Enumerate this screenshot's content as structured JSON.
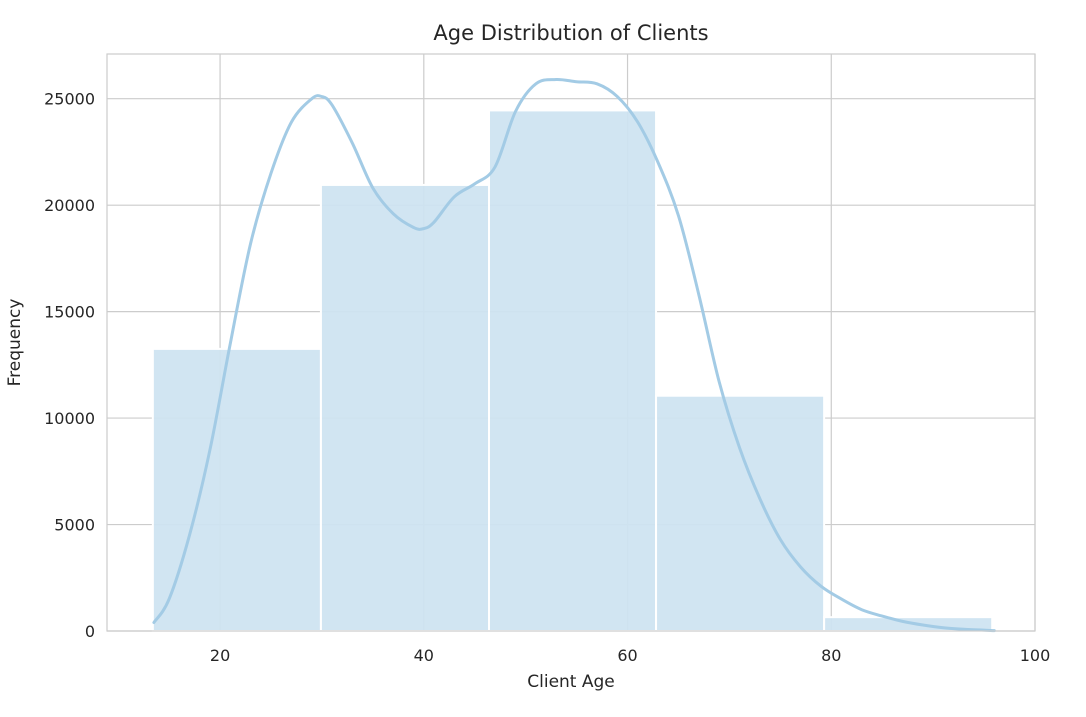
{
  "chart_data": {
    "type": "bar",
    "title": "Age Distribution of Clients",
    "xlabel": "Client Age",
    "ylabel": "Frequency",
    "xlim": [
      8.9,
      100
    ],
    "ylim": [
      0,
      27100
    ],
    "xticks": [
      20,
      40,
      60,
      80,
      100
    ],
    "yticks": [
      0,
      5000,
      10000,
      15000,
      20000,
      25000
    ],
    "grid": true,
    "bins": [
      {
        "start": 13.4,
        "end": 29.9,
        "value": 13250
      },
      {
        "start": 29.9,
        "end": 46.4,
        "value": 20950
      },
      {
        "start": 46.4,
        "end": 62.8,
        "value": 24450
      },
      {
        "start": 62.8,
        "end": 79.3,
        "value": 11050
      },
      {
        "start": 79.3,
        "end": 95.8,
        "value": 650
      }
    ],
    "kde": {
      "x": [
        13.5,
        15,
        17,
        19,
        21,
        23,
        25,
        27,
        29,
        30,
        31,
        33,
        35,
        37,
        39,
        40,
        41,
        43,
        45,
        47,
        49,
        51,
        53,
        55,
        57,
        59,
        61,
        63,
        65,
        67,
        69,
        71,
        73,
        75,
        77,
        79,
        81,
        83,
        85,
        87,
        89,
        91,
        93,
        96
      ],
      "y": [
        400,
        1500,
        4500,
        8500,
        13500,
        18200,
        21500,
        23900,
        25000,
        25100,
        24700,
        22900,
        20800,
        19600,
        18950,
        18900,
        19200,
        20400,
        21000,
        21800,
        24400,
        25700,
        25900,
        25800,
        25700,
        25100,
        23900,
        22000,
        19500,
        15800,
        11700,
        8600,
        6200,
        4300,
        3000,
        2100,
        1500,
        1000,
        700,
        450,
        280,
        150,
        80,
        20
      ]
    },
    "colors": {
      "bar_fill": "#cde3f1",
      "kde_line": "#a3cbe5",
      "grid": "#cccccc",
      "text": "#262626"
    }
  }
}
